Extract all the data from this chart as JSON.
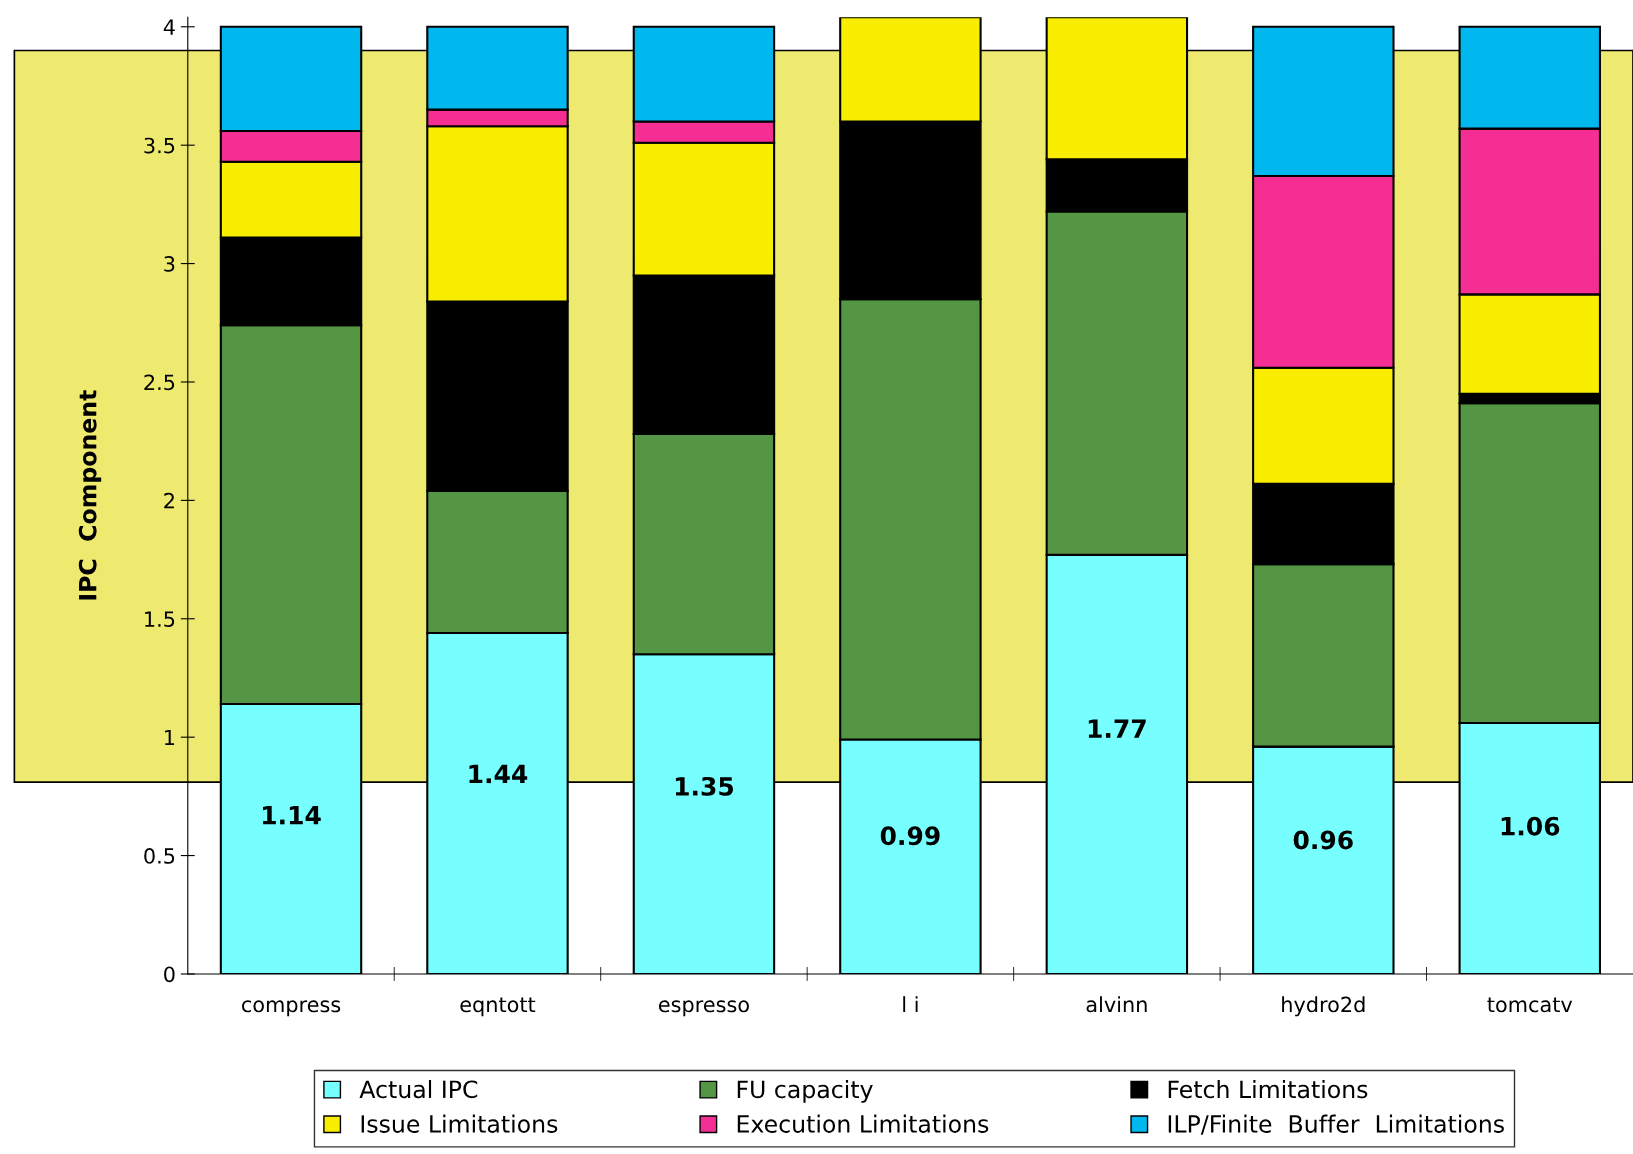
{
  "chart_data": {
    "type": "bar",
    "stacked": true,
    "ylabel": "IPC  Component",
    "categories": [
      "compress",
      "eqntott",
      "espresso",
      "l i",
      "alvinn",
      "hydro2d",
      "tomcatv"
    ],
    "series": [
      {
        "name": "Actual IPC",
        "color": "#77ffff",
        "values": [
          1.14,
          1.44,
          1.35,
          0.99,
          1.77,
          0.96,
          1.06
        ],
        "value_labels": [
          "1.14",
          "1.44",
          "1.35",
          "0.99",
          "1.77",
          "0.96",
          "1.06"
        ]
      },
      {
        "name": "FU capacity",
        "color": "#559645",
        "values": [
          1.6,
          0.6,
          0.93,
          1.86,
          1.45,
          0.77,
          1.35
        ]
      },
      {
        "name": "Fetch Limitations",
        "color": "#000000",
        "values": [
          0.37,
          0.8,
          0.67,
          0.75,
          0.22,
          0.34,
          0.04
        ]
      },
      {
        "name": "Issue Limitations",
        "color": "#f9ee00",
        "values": [
          0.32,
          0.74,
          0.56,
          0.44,
          0.6,
          0.49,
          0.42
        ]
      },
      {
        "name": "Execution Limitations",
        "color": "#f52e93",
        "values": [
          0.13,
          0.07,
          0.09,
          0,
          0,
          0.81,
          0.7
        ]
      },
      {
        "name": "ILP/Finite  Buffer  Limitations",
        "color": "#00b7ee",
        "values": [
          0.44,
          0.35,
          0.4,
          0,
          0,
          0.63,
          0.43
        ]
      }
    ],
    "ylim": [
      0,
      4.04
    ],
    "yticks": [
      0,
      0.5,
      1,
      1.5,
      2,
      2.5,
      3,
      3.5,
      4
    ],
    "bands": [
      {
        "axis": "y",
        "from": 0.81,
        "to": 3.9,
        "color": "#eeea70"
      }
    ],
    "legend": "bottom",
    "grid": false
  }
}
